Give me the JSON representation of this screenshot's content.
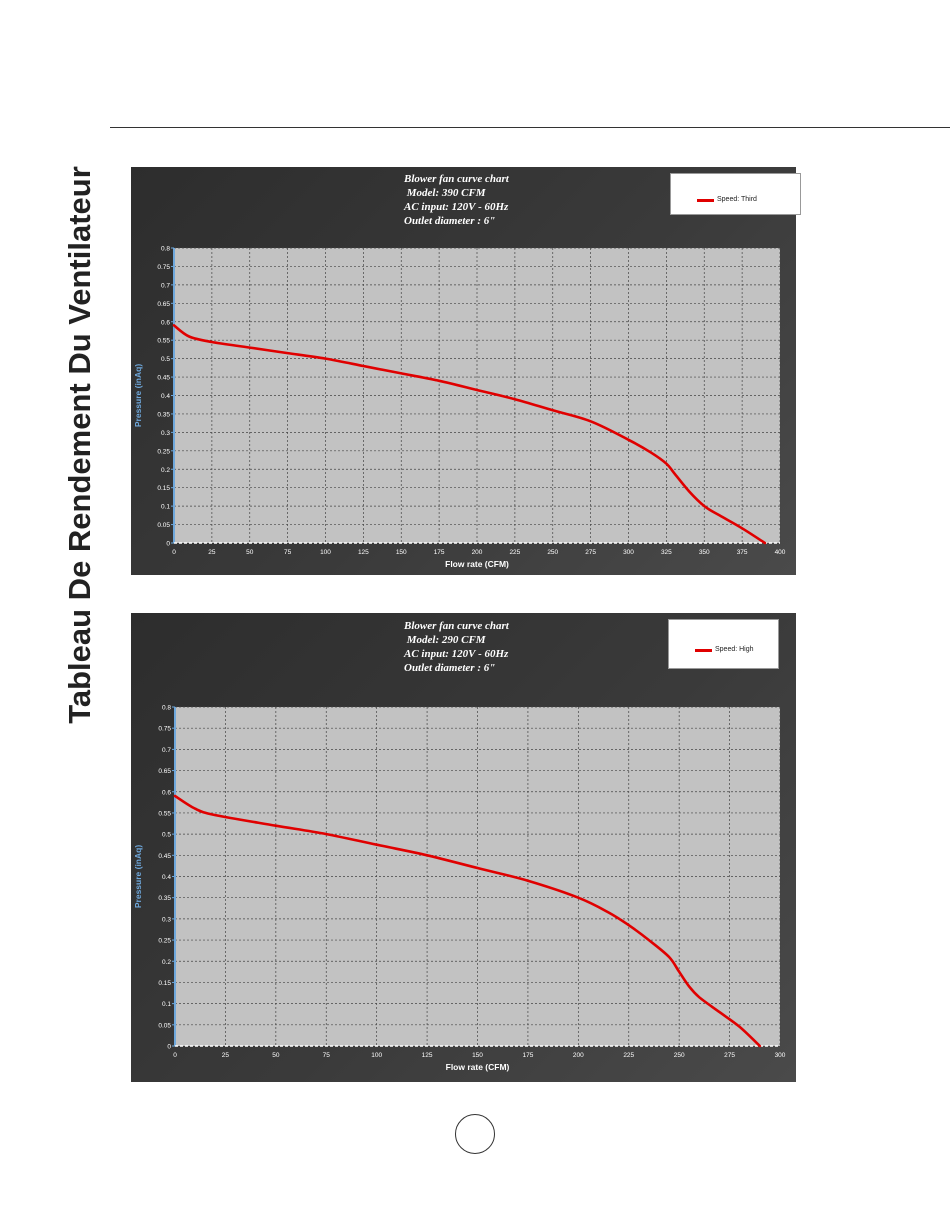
{
  "page": {
    "side_title": "Tableau De Rendement Du Ventilateur"
  },
  "chart_data": [
    {
      "type": "line",
      "title_lines": [
        "Blower fan curve chart",
        " Model: 390 CFM",
        "AC input: 120V - 60Hz",
        "Outlet diameter : 6\""
      ],
      "xlabel": "Flow rate (CFM)",
      "ylabel": "Pressure (inAq)",
      "xlim": [
        0,
        400
      ],
      "ylim": [
        0,
        0.8
      ],
      "xticks": [
        0,
        25,
        50,
        75,
        100,
        125,
        150,
        175,
        200,
        225,
        250,
        275,
        300,
        325,
        350,
        375,
        400
      ],
      "xtick_labels": [
        "0",
        "25",
        "50",
        "75",
        "100",
        "125",
        "150",
        "175",
        "200",
        "225",
        "250",
        "275",
        "300",
        "325",
        "350",
        "375",
        "400"
      ],
      "yticks": [
        0,
        0.05,
        0.1,
        0.15,
        0.2,
        0.25,
        0.3,
        0.35,
        0.4,
        0.45,
        0.5,
        0.55,
        0.6,
        0.65,
        0.7,
        0.75,
        0.8
      ],
      "ytick_labels": [
        "0",
        "0.05",
        "0.1",
        "0.15",
        "0.2",
        "0.25",
        "0.3",
        "0.35",
        "0.4",
        "0.45",
        "0.5",
        "0.55",
        "0.6",
        "0.65",
        "0.7",
        "0.75",
        "0.8"
      ],
      "grid": true,
      "legend_position": "top-right",
      "series": [
        {
          "name": "Speed: Third",
          "color": "#e00000",
          "x": [
            0,
            10,
            25,
            50,
            75,
            100,
            125,
            150,
            175,
            200,
            225,
            250,
            275,
            300,
            315,
            325,
            330,
            340,
            350,
            360,
            375,
            390
          ],
          "y": [
            0.59,
            0.56,
            0.545,
            0.53,
            0.515,
            0.5,
            0.48,
            0.46,
            0.44,
            0.415,
            0.39,
            0.36,
            0.33,
            0.28,
            0.245,
            0.215,
            0.19,
            0.14,
            0.1,
            0.075,
            0.04,
            0
          ]
        }
      ]
    },
    {
      "type": "line",
      "title_lines": [
        "Blower fan curve chart",
        " Model: 290 CFM",
        "AC input: 120V - 60Hz",
        "Outlet diameter : 6\""
      ],
      "xlabel": "Flow rate (CFM)",
      "ylabel": "Pressure (inAq)",
      "xlim": [
        0,
        300
      ],
      "ylim": [
        0,
        0.8
      ],
      "xticks": [
        0,
        25,
        50,
        75,
        100,
        125,
        150,
        175,
        200,
        225,
        250,
        275,
        300
      ],
      "xtick_labels": [
        "0",
        "25",
        "50",
        "75",
        "100",
        "125",
        "150",
        "175",
        "200",
        "225",
        "250",
        "275",
        "300"
      ],
      "yticks": [
        0,
        0.05,
        0.1,
        0.15,
        0.2,
        0.25,
        0.3,
        0.35,
        0.4,
        0.45,
        0.5,
        0.55,
        0.6,
        0.65,
        0.7,
        0.75,
        0.8
      ],
      "ytick_labels": [
        "0",
        "0.05",
        "0.1",
        "0.15",
        "0.2",
        "0.25",
        "0.3",
        "0.35",
        "0.4",
        "0.45",
        "0.5",
        "0.55",
        "0.6",
        "0.65",
        "0.7",
        "0.75",
        "0.8"
      ],
      "grid": true,
      "legend_position": "top-right",
      "series": [
        {
          "name": "Speed: High",
          "color": "#e00000",
          "x": [
            0,
            10,
            20,
            50,
            75,
            100,
            125,
            150,
            175,
            200,
            215,
            225,
            235,
            245,
            250,
            255,
            260,
            270,
            280,
            290
          ],
          "y": [
            0.59,
            0.56,
            0.545,
            0.52,
            0.5,
            0.475,
            0.45,
            0.42,
            0.39,
            0.35,
            0.315,
            0.285,
            0.25,
            0.21,
            0.175,
            0.14,
            0.115,
            0.08,
            0.045,
            0
          ]
        }
      ]
    }
  ]
}
